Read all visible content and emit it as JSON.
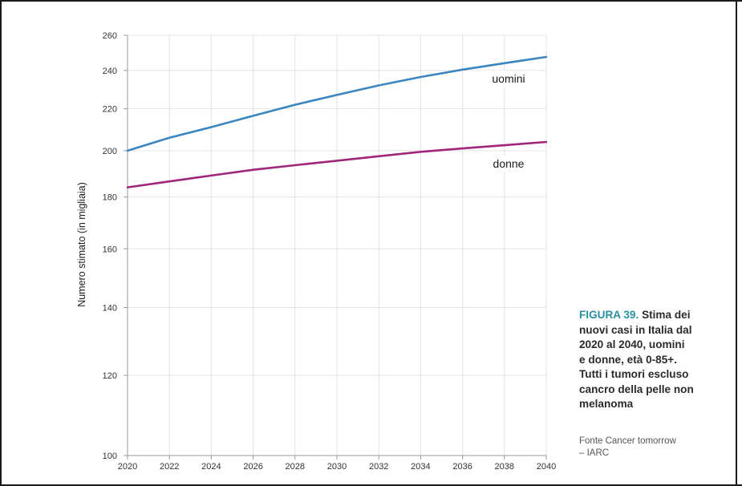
{
  "chart_data": {
    "type": "line",
    "x": [
      2020,
      2022,
      2024,
      2026,
      2028,
      2030,
      2032,
      2034,
      2036,
      2038,
      2040
    ],
    "x_ticks": [
      "2020",
      "2022",
      "2024",
      "2026",
      "2028",
      "2030",
      "2032",
      "2034",
      "2036",
      "2038",
      "2040"
    ],
    "xlim": [
      2020,
      2040
    ],
    "ylabel": "Numero stimato (in migliaia)",
    "y_scale": "log",
    "ylim": [
      100,
      260
    ],
    "y_ticks": [
      "100",
      "120",
      "140",
      "160",
      "180",
      "200",
      "220",
      "240",
      "260"
    ],
    "y_tick_values": [
      100,
      120,
      140,
      160,
      180,
      200,
      220,
      240,
      260
    ],
    "grid": true,
    "series": [
      {
        "name": "uomini",
        "color": "#3b86c0",
        "values": [
          200,
          206,
          211,
          216.5,
          222,
          227,
          232,
          236.5,
          240.5,
          244,
          247.5
        ]
      },
      {
        "name": "donne",
        "color": "#a0267a",
        "values": [
          184,
          186.5,
          189,
          191.5,
          193.5,
          195.5,
          197.5,
          199.5,
          201,
          202.5,
          204
        ]
      }
    ]
  },
  "caption": {
    "figure_number": "FIGURA 39.",
    "title_lines": [
      "Stima dei",
      "nuovi casi  in Italia dal",
      "2020 al 2040, uomini",
      "e donne, età 0-85+.",
      "Tutti i tumori escluso",
      "cancro della pelle non",
      "melanoma"
    ]
  },
  "source": {
    "lines": [
      "Fonte Cancer tomorrow",
      "– IARC"
    ]
  }
}
